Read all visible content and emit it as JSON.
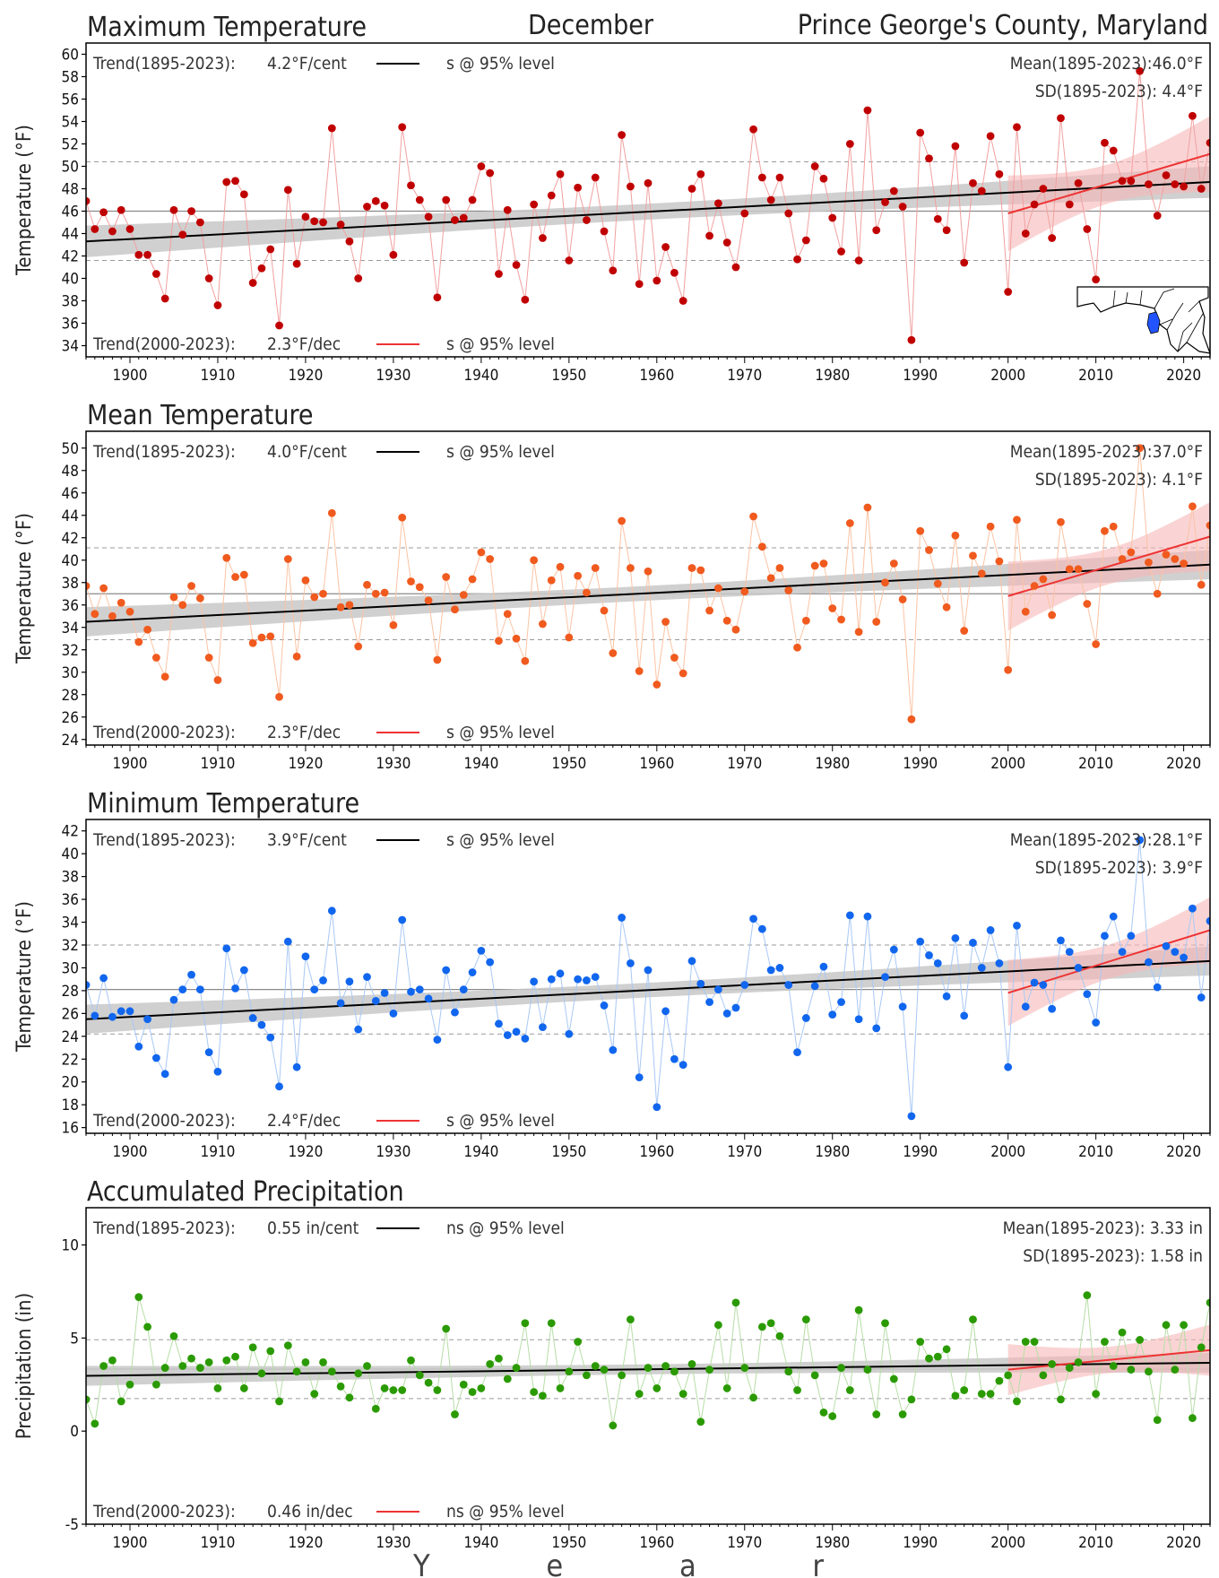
{
  "header": {
    "title_center": "December",
    "title_right": "Prince George's County, Maryland",
    "xlabel": "Y e a r"
  },
  "colors": {
    "max": "#c00000",
    "mean": "#f05a1e",
    "min": "#1166ee",
    "precip": "#2a9a00",
    "trend_long": "#000000",
    "trend_recent": "#ee3333",
    "band_long": "#c8c8c8",
    "band_recent": "#f7b8b8"
  },
  "inset_map": {
    "name": "maryland-locator-map",
    "highlight": "Prince George's County",
    "highlight_color": "#2255ff"
  },
  "chart_data": [
    {
      "type": "line",
      "title": "Maximum Temperature",
      "ylabel": "Temperature (°F)",
      "ylim": [
        33,
        61
      ],
      "yticks": [
        34,
        36,
        38,
        40,
        42,
        44,
        46,
        48,
        50,
        52,
        54,
        56,
        58,
        60
      ],
      "xlim": [
        1895,
        2023
      ],
      "xticks": [
        1900,
        1910,
        1920,
        1930,
        1940,
        1950,
        1960,
        1970,
        1980,
        1990,
        2000,
        2010,
        2020
      ],
      "grid": false,
      "trend_long_label": "Trend(1895-2023):",
      "trend_long_value": "4.2°F/cent",
      "trend_long_sig": "s @ 95% level",
      "trend_recent_label": "Trend(2000-2023):",
      "trend_recent_value": "2.3°F/dec",
      "trend_recent_sig": "s @ 95% level",
      "mean_text": "Mean(1895-2023):46.0°F",
      "sd_text": "SD(1895-2023): 4.4°F",
      "mean": 46.0,
      "sd": 4.4,
      "trend_long_line": [
        [
          1895,
          43.3
        ],
        [
          2023,
          48.6
        ]
      ],
      "trend_recent_line": [
        [
          2000,
          45.8
        ],
        [
          2023,
          51.1
        ]
      ],
      "series": [
        {
          "x0": 1895,
          "values": [
            46.9,
            44.4,
            45.9,
            44.2,
            46.1,
            44.4,
            42.1,
            42.1,
            40.4,
            38.2,
            46.1,
            43.9,
            46.0,
            45.0,
            40.0,
            37.6,
            48.6,
            48.7,
            47.5,
            39.6,
            40.9,
            42.6,
            35.8,
            47.9,
            41.3,
            45.5,
            45.1,
            45.0,
            53.4,
            44.8,
            43.3,
            40.0,
            46.4,
            46.9,
            46.5,
            42.1,
            53.5,
            48.3,
            47.0,
            45.5,
            38.3,
            47.0,
            45.2,
            45.4,
            47.0,
            50.0,
            49.4,
            40.4,
            46.1,
            41.2,
            38.1,
            46.6,
            43.6,
            47.4,
            49.3,
            41.6,
            48.1,
            45.2,
            49.0,
            44.2,
            40.7,
            52.8,
            48.2,
            39.5,
            48.5,
            39.8,
            42.8,
            40.5,
            38.0,
            48.0,
            49.3,
            43.8,
            46.7,
            43.2,
            41.0,
            45.8,
            53.3,
            49.0,
            47.0,
            49.0,
            45.8,
            41.7,
            43.4,
            50.0,
            48.9,
            45.4,
            42.4,
            52.0,
            41.6,
            55.0,
            44.3,
            46.8,
            47.8,
            46.4,
            34.5,
            53.0,
            50.7,
            45.3,
            44.3,
            51.8,
            41.4,
            48.5,
            47.8,
            52.7,
            49.3,
            38.8,
            53.5,
            44.0,
            46.6,
            48.0,
            43.6,
            54.3,
            46.6,
            48.5,
            44.4,
            39.9,
            52.1,
            51.4,
            48.7,
            48.7,
            58.5,
            48.4,
            45.6,
            49.2,
            48.4,
            48.2,
            54.5,
            48.0,
            52.1
          ]
        }
      ]
    },
    {
      "type": "line",
      "title": "Mean Temperature",
      "ylabel": "Temperature (°F)",
      "ylim": [
        23.5,
        51.5
      ],
      "yticks": [
        24,
        26,
        28,
        30,
        32,
        34,
        36,
        38,
        40,
        42,
        44,
        46,
        48,
        50
      ],
      "xlim": [
        1895,
        2023
      ],
      "xticks": [
        1900,
        1910,
        1920,
        1930,
        1940,
        1950,
        1960,
        1970,
        1980,
        1990,
        2000,
        2010,
        2020
      ],
      "grid": false,
      "trend_long_label": "Trend(1895-2023):",
      "trend_long_value": "4.0°F/cent",
      "trend_long_sig": "s @ 95% level",
      "trend_recent_label": "Trend(2000-2023):",
      "trend_recent_value": "2.3°F/dec",
      "trend_recent_sig": "s @ 95% level",
      "mean_text": "Mean(1895-2023):37.0°F",
      "sd_text": "SD(1895-2023): 4.1°F",
      "mean": 37.0,
      "sd": 4.1,
      "trend_long_line": [
        [
          1895,
          34.5
        ],
        [
          2023,
          39.6
        ]
      ],
      "trend_recent_line": [
        [
          2000,
          36.8
        ],
        [
          2023,
          42.1
        ]
      ],
      "series": [
        {
          "x0": 1895,
          "values": [
            37.7,
            35.2,
            37.5,
            35.0,
            36.2,
            35.4,
            32.7,
            33.8,
            31.3,
            29.6,
            36.7,
            36.0,
            37.7,
            36.6,
            31.3,
            29.3,
            40.2,
            38.5,
            38.7,
            32.6,
            33.1,
            33.2,
            27.8,
            40.1,
            31.4,
            38.2,
            36.7,
            37.0,
            44.2,
            35.8,
            36.0,
            32.3,
            37.8,
            37.0,
            37.1,
            34.2,
            43.8,
            38.1,
            37.6,
            36.4,
            31.1,
            38.5,
            35.6,
            36.9,
            38.3,
            40.7,
            40.1,
            32.8,
            35.2,
            33.0,
            31.0,
            40.0,
            34.3,
            38.2,
            39.4,
            33.1,
            38.6,
            37.1,
            39.3,
            35.5,
            31.7,
            43.5,
            39.3,
            30.1,
            39.0,
            28.9,
            34.5,
            31.3,
            29.9,
            39.3,
            39.1,
            35.5,
            37.5,
            34.6,
            33.8,
            37.2,
            43.9,
            41.2,
            38.4,
            39.3,
            37.3,
            32.2,
            34.6,
            39.5,
            39.7,
            35.7,
            34.7,
            43.3,
            33.6,
            44.7,
            34.5,
            38.0,
            39.7,
            36.5,
            25.8,
            42.6,
            40.9,
            37.9,
            35.8,
            42.2,
            33.7,
            40.4,
            38.8,
            43.0,
            39.9,
            30.2,
            43.6,
            35.4,
            37.7,
            38.3,
            35.1,
            43.4,
            39.2,
            39.2,
            36.1,
            32.5,
            42.6,
            43.0,
            40.1,
            40.7,
            50.0,
            39.8,
            37.0,
            40.5,
            40.1,
            39.7,
            44.8,
            37.8,
            43.1
          ]
        }
      ]
    },
    {
      "type": "line",
      "title": "Minimum Temperature",
      "ylabel": "Temperature (°F)",
      "ylim": [
        15.5,
        43
      ],
      "yticks": [
        16,
        18,
        20,
        22,
        24,
        26,
        28,
        30,
        32,
        34,
        36,
        38,
        40,
        42
      ],
      "xlim": [
        1895,
        2023
      ],
      "xticks": [
        1900,
        1910,
        1920,
        1930,
        1940,
        1950,
        1960,
        1970,
        1980,
        1990,
        2000,
        2010,
        2020
      ],
      "grid": false,
      "trend_long_label": "Trend(1895-2023):",
      "trend_long_value": "3.9°F/cent",
      "trend_long_sig": "s @ 95% level",
      "trend_recent_label": "Trend(2000-2023):",
      "trend_recent_value": "2.4°F/dec",
      "trend_recent_sig": "s @ 95% level",
      "mean_text": "Mean(1895-2023):28.1°F",
      "sd_text": "SD(1895-2023): 3.9°F",
      "mean": 28.1,
      "sd": 3.9,
      "trend_long_line": [
        [
          1895,
          25.5
        ],
        [
          2023,
          30.6
        ]
      ],
      "trend_recent_line": [
        [
          2000,
          27.8
        ],
        [
          2023,
          33.3
        ]
      ],
      "series": [
        {
          "x0": 1895,
          "values": [
            28.5,
            25.8,
            29.1,
            25.7,
            26.2,
            26.2,
            23.1,
            25.5,
            22.1,
            20.7,
            27.2,
            28.1,
            29.4,
            28.1,
            22.6,
            20.9,
            31.7,
            28.2,
            29.8,
            25.6,
            25.0,
            23.9,
            19.6,
            32.3,
            21.3,
            31.0,
            28.1,
            28.9,
            35.0,
            26.9,
            28.8,
            24.6,
            29.2,
            27.1,
            27.8,
            26.0,
            34.2,
            27.9,
            28.1,
            27.3,
            23.7,
            29.8,
            26.1,
            28.1,
            29.6,
            31.5,
            30.5,
            25.1,
            24.1,
            24.4,
            23.8,
            28.8,
            24.8,
            29.0,
            29.5,
            24.2,
            29.0,
            28.9,
            29.2,
            26.7,
            22.8,
            34.4,
            30.4,
            20.4,
            29.8,
            17.8,
            26.2,
            22.0,
            21.5,
            30.6,
            28.6,
            27.0,
            28.1,
            26.0,
            26.5,
            28.5,
            34.3,
            33.4,
            29.8,
            30.0,
            28.5,
            22.6,
            25.6,
            28.4,
            30.1,
            25.9,
            27.0,
            34.6,
            25.5,
            34.5,
            24.7,
            29.2,
            31.6,
            26.6,
            17.0,
            32.3,
            31.1,
            30.4,
            27.5,
            32.6,
            25.8,
            32.2,
            30.0,
            33.3,
            30.4,
            21.3,
            33.7,
            26.6,
            28.7,
            28.5,
            26.4,
            32.4,
            31.4,
            30.0,
            27.7,
            25.2,
            32.8,
            34.5,
            31.4,
            32.8,
            41.2,
            30.5,
            28.3,
            31.9,
            31.4,
            30.9,
            35.2,
            27.4,
            34.1
          ]
        }
      ]
    },
    {
      "type": "line",
      "title": "Accumulated Precipitation",
      "ylabel": "Precipitation (in)",
      "ylim": [
        -5,
        12
      ],
      "yticks": [
        -5,
        0,
        5,
        10
      ],
      "xlim": [
        1895,
        2023
      ],
      "xticks": [
        1900,
        1910,
        1920,
        1930,
        1940,
        1950,
        1960,
        1970,
        1980,
        1990,
        2000,
        2010,
        2020
      ],
      "grid": false,
      "trend_long_label": "Trend(1895-2023):",
      "trend_long_value": "0.55 in/cent",
      "trend_long_sig": "ns @ 95% level",
      "trend_recent_label": "Trend(2000-2023):",
      "trend_recent_value": "0.46 in/dec",
      "trend_recent_sig": "ns @ 95% level",
      "mean_text": "Mean(1895-2023): 3.33 in",
      "sd_text": "SD(1895-2023): 1.58 in",
      "mean": 3.33,
      "sd": 1.58,
      "trend_long_line": [
        [
          1895,
          2.97
        ],
        [
          2023,
          3.67
        ]
      ],
      "trend_recent_line": [
        [
          2000,
          3.3
        ],
        [
          2023,
          4.35
        ]
      ],
      "series": [
        {
          "x0": 1895,
          "values": [
            1.7,
            0.4,
            3.5,
            3.8,
            1.6,
            2.5,
            7.2,
            5.6,
            2.5,
            3.4,
            5.1,
            3.5,
            3.9,
            3.4,
            3.7,
            2.3,
            3.8,
            4.0,
            2.3,
            4.5,
            3.1,
            4.3,
            1.6,
            4.6,
            3.2,
            3.7,
            2.0,
            3.7,
            3.2,
            2.4,
            1.8,
            3.1,
            3.5,
            1.2,
            2.3,
            2.2,
            2.2,
            3.8,
            3.0,
            2.6,
            2.2,
            5.5,
            0.9,
            2.5,
            2.1,
            2.3,
            3.6,
            3.9,
            2.8,
            3.4,
            5.8,
            2.1,
            1.9,
            5.8,
            2.3,
            3.2,
            4.8,
            3.0,
            3.5,
            3.3,
            0.3,
            3.0,
            6.0,
            2.0,
            3.4,
            2.3,
            3.5,
            3.2,
            2.0,
            3.6,
            0.5,
            3.3,
            5.7,
            2.3,
            6.9,
            3.4,
            1.8,
            5.6,
            5.8,
            5.1,
            3.2,
            2.2,
            6.0,
            3.0,
            1.0,
            0.8,
            3.4,
            2.2,
            6.5,
            3.3,
            0.9,
            5.8,
            2.8,
            0.9,
            1.7,
            4.8,
            3.9,
            4.0,
            4.4,
            1.9,
            2.2,
            6.0,
            2.0,
            2.0,
            2.7,
            3.0,
            1.6,
            4.8,
            4.8,
            3.0,
            3.6,
            1.7,
            3.4,
            3.7,
            7.3,
            2.0,
            4.8,
            3.5,
            5.3,
            3.3,
            4.9,
            3.2,
            0.6,
            5.7,
            3.3,
            5.7,
            0.7,
            4.5,
            6.9
          ]
        }
      ]
    }
  ]
}
